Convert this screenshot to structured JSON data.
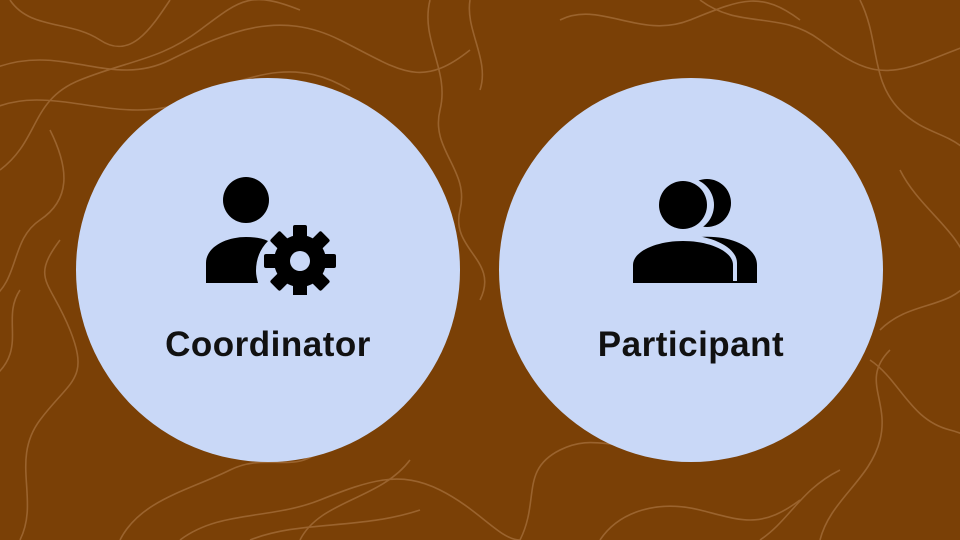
{
  "colors": {
    "background": "#7a4006",
    "contour": "#a06a35",
    "circle": "#c9d8f7",
    "icon": "#000000",
    "text": "#111111"
  },
  "roles": [
    {
      "label": "Coordinator",
      "icon": "person-gear-icon"
    },
    {
      "label": "Participant",
      "icon": "people-group-icon"
    }
  ]
}
